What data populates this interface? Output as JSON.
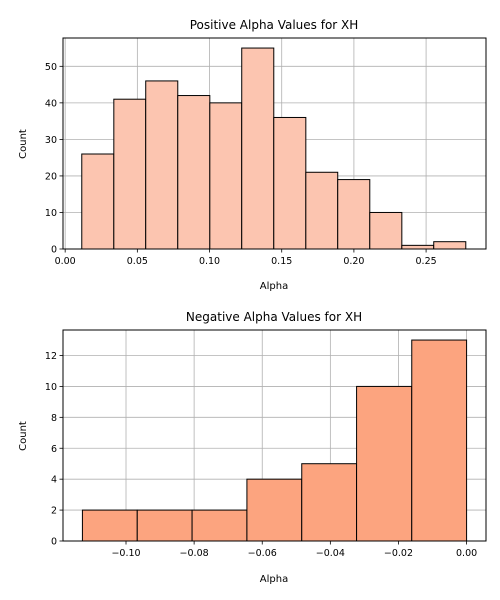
{
  "chart_data": [
    {
      "type": "histogram",
      "title": "Positive Alpha Values for XH",
      "xlabel": "Alpha",
      "ylabel": "Count",
      "xlim": [
        -0.0015,
        0.2915
      ],
      "ylim": [
        0,
        57.75
      ],
      "xticks": [
        0.0,
        0.05,
        0.1,
        0.15,
        0.2,
        0.25
      ],
      "xtick_labels": [
        "0.00",
        "0.05",
        "0.10",
        "0.15",
        "0.20",
        "0.25"
      ],
      "yticks": [
        0,
        10,
        20,
        30,
        40,
        50
      ],
      "ytick_labels": [
        "0",
        "10",
        "20",
        "30",
        "40",
        "50"
      ],
      "grid": true,
      "bar_color": "#fcc5b0",
      "edge_color": "#000000",
      "bins": [
        {
          "x0": 0.0115,
          "x1": 0.0337,
          "count": 26
        },
        {
          "x0": 0.0337,
          "x1": 0.0558,
          "count": 41
        },
        {
          "x0": 0.0558,
          "x1": 0.078,
          "count": 46
        },
        {
          "x0": 0.078,
          "x1": 0.1002,
          "count": 42
        },
        {
          "x0": 0.1002,
          "x1": 0.1223,
          "count": 40
        },
        {
          "x0": 0.1223,
          "x1": 0.1445,
          "count": 55
        },
        {
          "x0": 0.1445,
          "x1": 0.1667,
          "count": 36
        },
        {
          "x0": 0.1667,
          "x1": 0.1888,
          "count": 21
        },
        {
          "x0": 0.1888,
          "x1": 0.211,
          "count": 19
        },
        {
          "x0": 0.211,
          "x1": 0.2332,
          "count": 10
        },
        {
          "x0": 0.2332,
          "x1": 0.2553,
          "count": 1
        },
        {
          "x0": 0.2553,
          "x1": 0.2775,
          "count": 2
        }
      ]
    },
    {
      "type": "histogram",
      "title": "Negative Alpha Values for XH",
      "xlabel": "Alpha",
      "ylabel": "Count",
      "xlim": [
        -0.1185,
        0.0057
      ],
      "ylim": [
        0,
        13.65
      ],
      "xticks": [
        -0.1,
        -0.08,
        -0.06,
        -0.04,
        -0.02,
        0.0
      ],
      "xtick_labels": [
        "−0.10",
        "−0.08",
        "−0.06",
        "−0.04",
        "−0.02",
        "0.00"
      ],
      "yticks": [
        0,
        2,
        4,
        6,
        8,
        10,
        12
      ],
      "ytick_labels": [
        "0",
        "2",
        "4",
        "6",
        "8",
        "10",
        "12"
      ],
      "grid": true,
      "bar_color": "#fca47f",
      "edge_color": "#000000",
      "bins": [
        {
          "x0": -0.1128,
          "x1": -0.0967,
          "count": 2
        },
        {
          "x0": -0.0967,
          "x1": -0.0806,
          "count": 2
        },
        {
          "x0": -0.0806,
          "x1": -0.0645,
          "count": 2
        },
        {
          "x0": -0.0645,
          "x1": -0.0484,
          "count": 4
        },
        {
          "x0": -0.0484,
          "x1": -0.0323,
          "count": 5
        },
        {
          "x0": -0.0323,
          "x1": -0.0161,
          "count": 10
        },
        {
          "x0": -0.0161,
          "x1": 0.0,
          "count": 13
        }
      ]
    }
  ]
}
